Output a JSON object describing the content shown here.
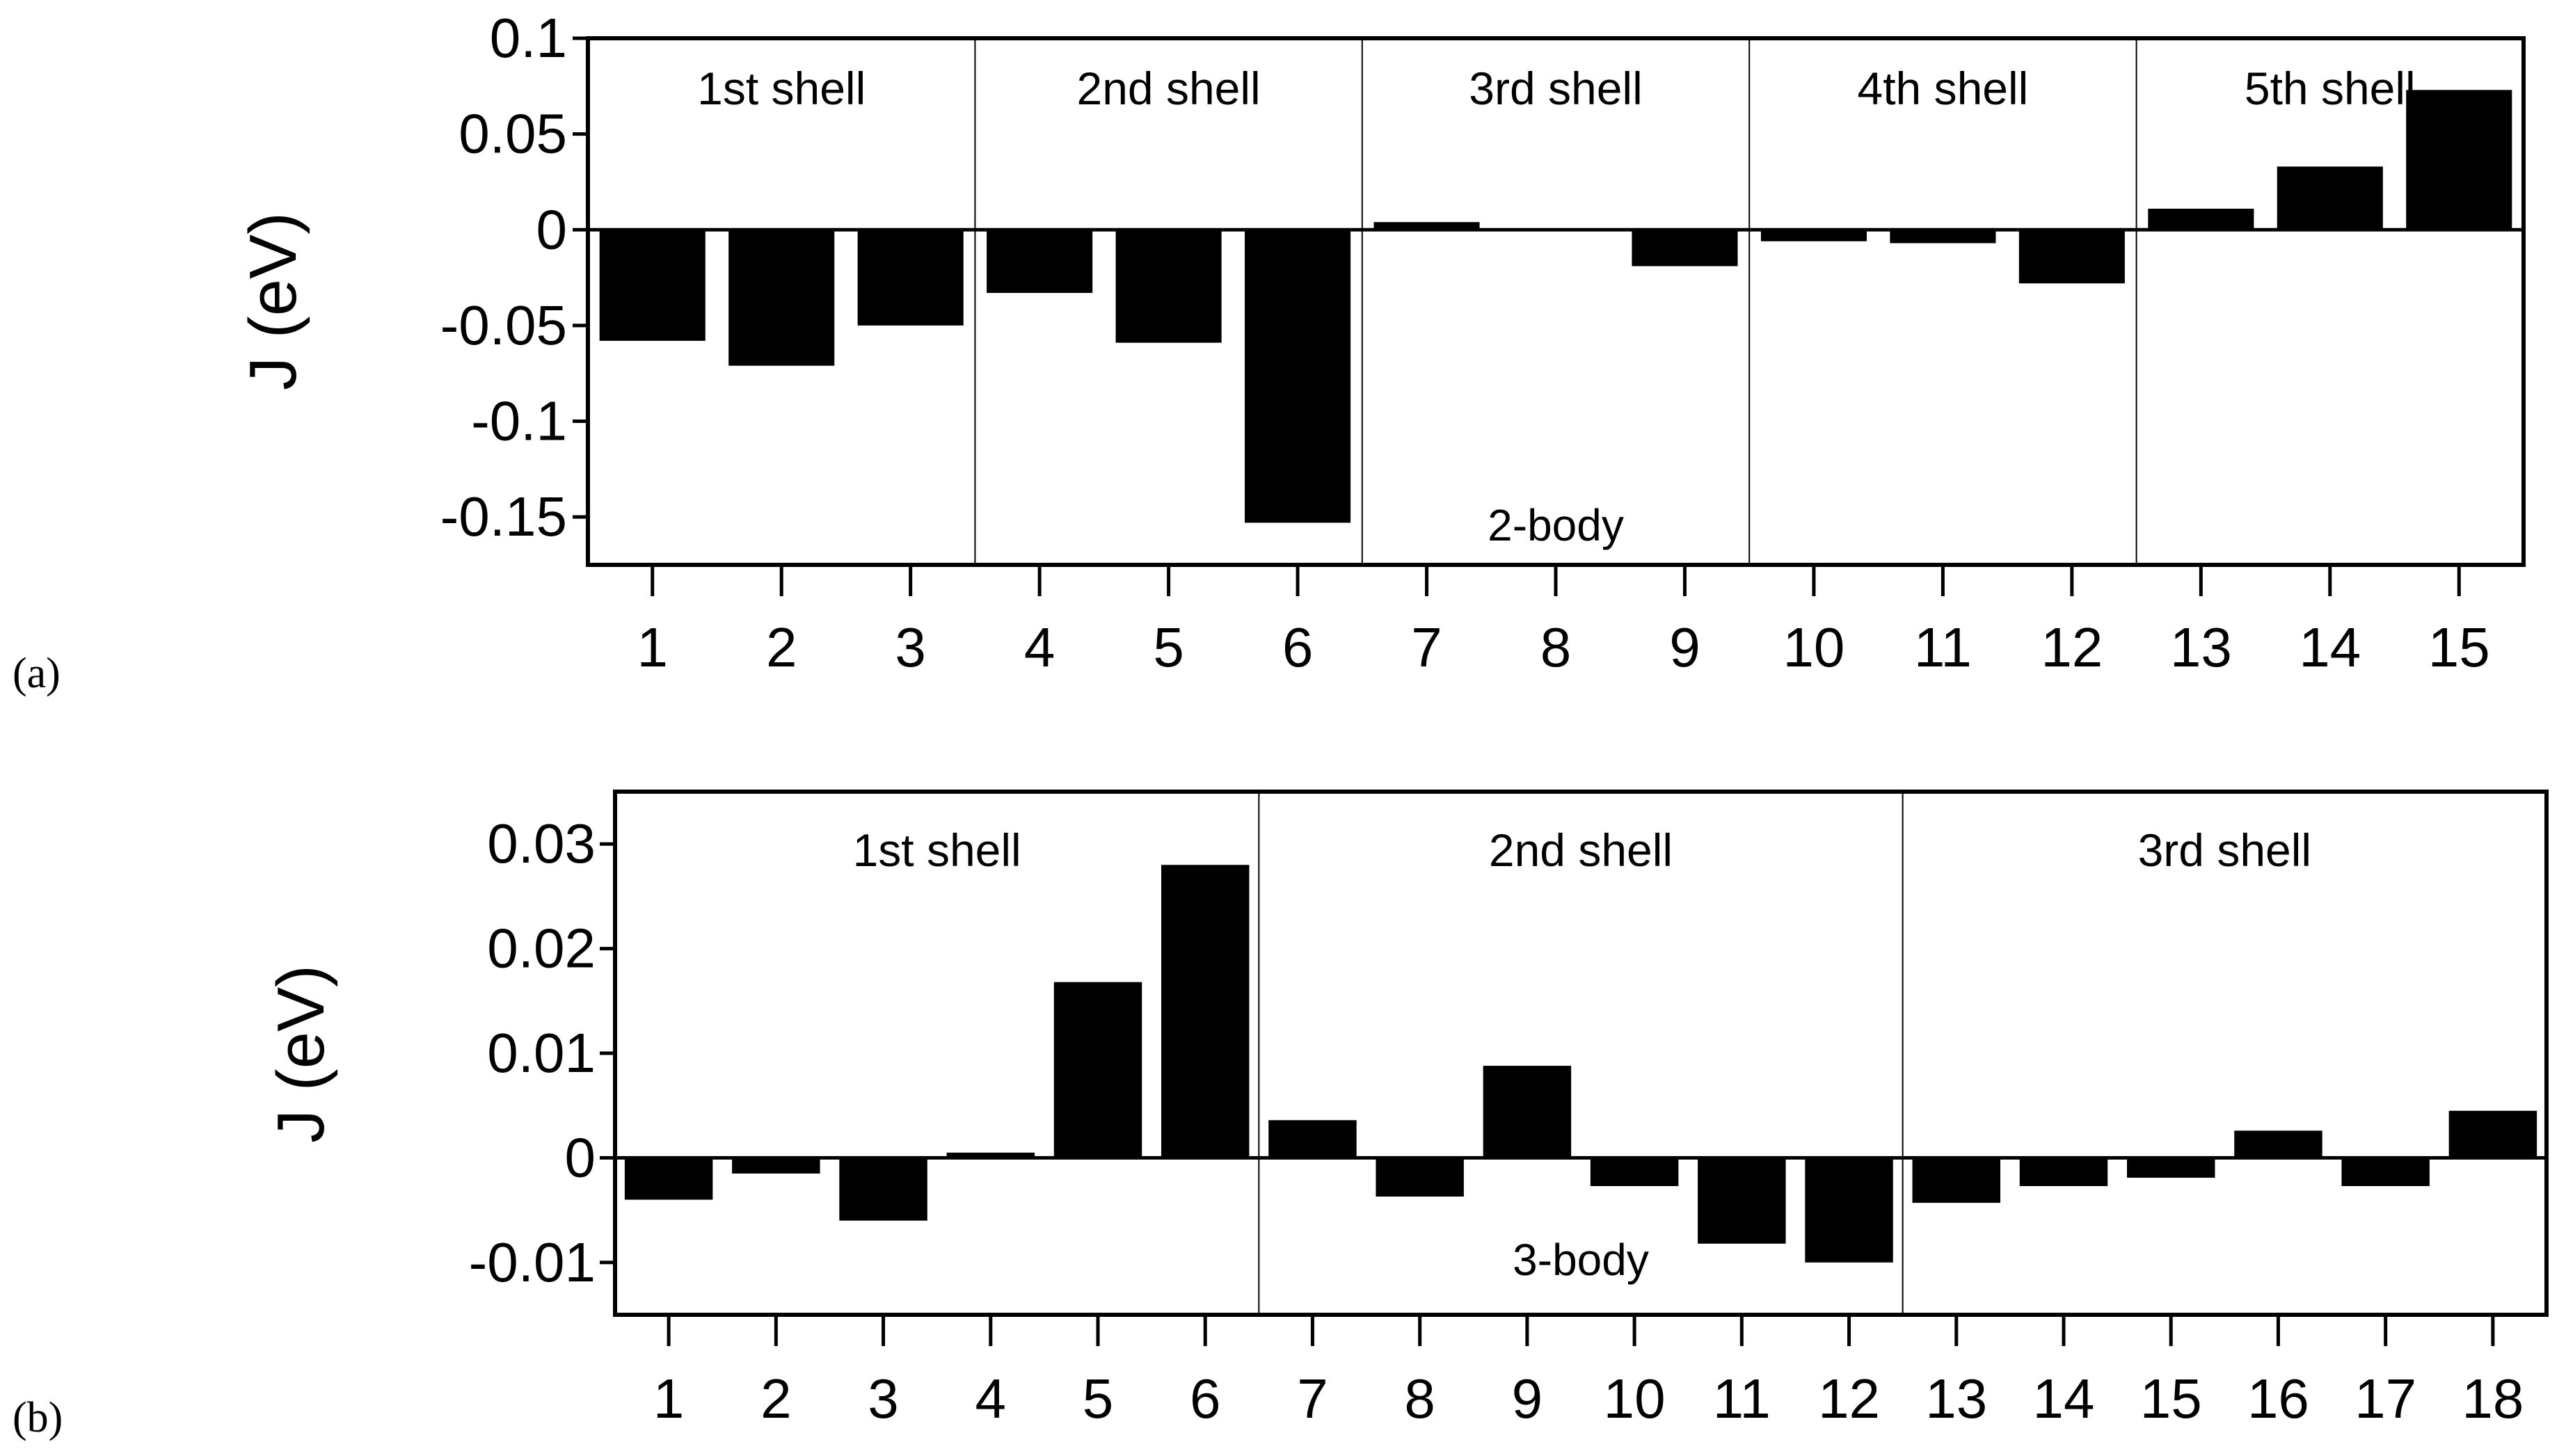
{
  "chart_data": [
    {
      "type": "bar",
      "panel_label": "(a)",
      "annotation": "2-body",
      "ylabel": "J (eV)",
      "xlabel": "",
      "categories": [
        "1",
        "2",
        "3",
        "4",
        "5",
        "6",
        "7",
        "8",
        "9",
        "10",
        "11",
        "12",
        "13",
        "14",
        "15"
      ],
      "values": [
        -0.058,
        -0.071,
        -0.05,
        -0.033,
        -0.059,
        -0.153,
        0.004,
        0.0,
        -0.019,
        -0.006,
        -0.007,
        -0.028,
        0.011,
        0.033,
        0.073
      ],
      "ylim": [
        -0.175,
        0.1
      ],
      "yticks": [
        0.1,
        0.05,
        0,
        -0.05,
        -0.1,
        -0.15
      ],
      "ytick_labels": [
        "0.1",
        "0.05",
        "0",
        "-0.05",
        "-0.1",
        "-0.15"
      ],
      "shells": [
        {
          "label": "1st shell",
          "from": 1,
          "to": 3
        },
        {
          "label": "2nd shell",
          "from": 4,
          "to": 6
        },
        {
          "label": "3rd shell",
          "from": 7,
          "to": 9
        },
        {
          "label": "4th shell",
          "from": 10,
          "to": 12
        },
        {
          "label": "5th shell",
          "from": 13,
          "to": 15
        }
      ],
      "grid": false,
      "bar_color": "#000000"
    },
    {
      "type": "bar",
      "panel_label": "(b)",
      "annotation": "3-body",
      "ylabel": "J (eV)",
      "xlabel": "",
      "categories": [
        "1",
        "2",
        "3",
        "4",
        "5",
        "6",
        "7",
        "8",
        "9",
        "10",
        "11",
        "12",
        "13",
        "14",
        "15",
        "16",
        "17",
        "18"
      ],
      "values": [
        -0.004,
        -0.0015,
        -0.006,
        0.0005,
        0.0168,
        0.028,
        0.0036,
        -0.0037,
        0.0088,
        -0.0027,
        -0.0082,
        -0.01,
        -0.0043,
        -0.0027,
        -0.0019,
        0.0026,
        -0.0027,
        0.0045
      ],
      "ylim": [
        -0.015,
        0.035
      ],
      "yticks": [
        0.03,
        0.02,
        0.01,
        0,
        -0.01
      ],
      "ytick_labels": [
        "0.03",
        "0.02",
        "0.01",
        "0",
        "-0.01"
      ],
      "shells": [
        {
          "label": "1st shell",
          "from": 1,
          "to": 6
        },
        {
          "label": "2nd shell",
          "from": 7,
          "to": 12
        },
        {
          "label": "3rd shell",
          "from": 13,
          "to": 18
        }
      ],
      "grid": false,
      "bar_color": "#000000"
    }
  ]
}
